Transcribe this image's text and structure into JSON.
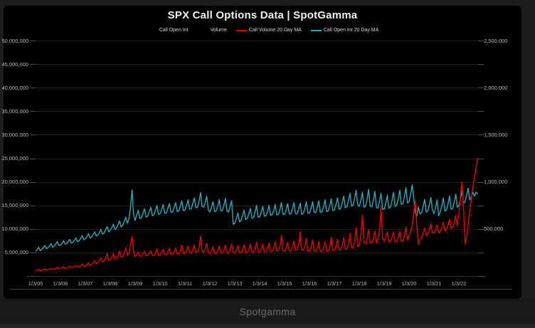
{
  "chart": {
    "title": "SPX Call Options Data | SpotGamma",
    "legend": [
      {
        "label": "Call Open Int",
        "marker_color": null
      },
      {
        "label": "Volume",
        "marker_color": null
      },
      {
        "label": "Call Volume 20 Day MA",
        "marker_color": "#e60000"
      },
      {
        "label": "Call Open Int 20 Day MA",
        "marker_color": "#2da7bc"
      }
    ]
  },
  "footer": {
    "brand": "Spotgamma"
  },
  "colors": {
    "panel_bg": "#000000",
    "page_bg": "#1d1d1d",
    "red_series": "#e60000",
    "cyan_series": "#2da7bc",
    "gridline": "#1f1f1f",
    "tick_stub": "#525252",
    "axis_text": "#b9b9b9"
  },
  "chart_data": {
    "type": "line",
    "title": "SPX Call Options Data | SpotGamma",
    "xlabel": "",
    "ylabel_left": "",
    "ylabel_right": "",
    "grid": "horizontal-only",
    "legend_position": "top-center",
    "x_tick_labels": [
      "1/3/05",
      "1/3/06",
      "1/3/07",
      "1/3/08",
      "1/3/09",
      "1/3/10",
      "1/3/11",
      "1/3/12",
      "1/3/13",
      "1/3/14",
      "1/3/15",
      "1/3/16",
      "1/3/17",
      "1/3/18",
      "1/3/19",
      "1/3/20",
      "1/3/21",
      "1/3/22"
    ],
    "x_start_year": 2005,
    "x_step_years": 0.0625,
    "left_axis": {
      "min": 0,
      "max": 50000000,
      "tick_step": 5000000,
      "tick_labels": [
        "-",
        "5,000,000",
        "10,000,000",
        "15,000,000",
        "20,000,000",
        "25,000,000",
        "30,000,000",
        "35,000,000",
        "40,000,000",
        "45,000,000",
        "50,000,000"
      ]
    },
    "right_axis": {
      "min": 0,
      "max": 2500000,
      "label_step": 500000,
      "minor_tick_step": 250000,
      "tick_labels": [
        "-",
        "500,000",
        "1,000,000",
        "1,500,000",
        "2,000,000",
        "2,500,000"
      ]
    },
    "series": [
      {
        "name": "Call Open Int 20 Day MA",
        "axis": "left",
        "color": "#2da7bc",
        "value_unit": 1000000,
        "unit_note": "values in millions of contracts, sampled ~every 3 weeks (16/yr) from Jan 2005 to Sep 2022",
        "values": [
          5.2,
          5.6,
          6.1,
          5.4,
          5.7,
          6.0,
          6.5,
          5.8,
          6.0,
          6.4,
          6.9,
          6.1,
          6.4,
          6.8,
          7.3,
          6.5,
          6.6,
          7.0,
          7.5,
          6.8,
          6.9,
          7.3,
          7.8,
          7.0,
          7.2,
          7.6,
          8.1,
          7.3,
          7.5,
          8.0,
          8.6,
          7.7,
          7.9,
          8.4,
          9.0,
          8.1,
          8.3,
          8.8,
          9.4,
          8.5,
          8.7,
          9.2,
          9.9,
          8.9,
          9.2,
          9.8,
          10.5,
          9.4,
          9.7,
          10.3,
          11.0,
          9.9,
          10.2,
          10.9,
          11.7,
          10.4,
          10.8,
          11.6,
          12.5,
          11.2,
          12.2,
          14.5,
          18.3,
          13.0,
          11.8,
          13.0,
          14.0,
          12.2,
          12.4,
          13.3,
          14.3,
          12.5,
          12.7,
          13.6,
          14.6,
          12.8,
          13.0,
          13.9,
          15.0,
          13.1,
          13.2,
          14.1,
          15.2,
          13.3,
          13.4,
          14.3,
          15.4,
          13.5,
          13.6,
          14.5,
          15.6,
          13.7,
          13.8,
          14.8,
          16.0,
          13.9,
          14.0,
          15.0,
          16.2,
          14.2,
          14.3,
          15.4,
          16.6,
          14.5,
          14.6,
          15.8,
          17.7,
          14.8,
          14.6,
          15.6,
          17.0,
          14.0,
          13.6,
          14.6,
          15.8,
          13.7,
          13.8,
          14.8,
          16.2,
          13.9,
          13.9,
          15.0,
          16.5,
          13.8,
          13.6,
          14.8,
          16.0,
          11.0,
          11.2,
          12.2,
          13.4,
          11.5,
          11.8,
          12.8,
          14.0,
          12.0,
          12.2,
          13.2,
          14.4,
          12.3,
          12.4,
          13.5,
          15.0,
          12.5,
          12.6,
          13.5,
          14.8,
          12.7,
          12.8,
          13.7,
          15.0,
          12.9,
          13.0,
          13.9,
          15.2,
          13.0,
          13.1,
          14.1,
          15.6,
          13.1,
          13.1,
          14.0,
          15.4,
          13.2,
          13.2,
          14.2,
          15.6,
          13.3,
          13.2,
          14.1,
          15.5,
          13.1,
          13.3,
          14.3,
          15.8,
          13.3,
          13.4,
          14.3,
          15.8,
          13.5,
          13.5,
          14.5,
          16.0,
          13.6,
          13.6,
          14.6,
          16.2,
          13.7,
          13.8,
          14.9,
          16.4,
          13.9,
          14.0,
          15.1,
          16.6,
          14.2,
          14.3,
          15.5,
          17.0,
          14.5,
          14.7,
          15.9,
          17.6,
          14.9,
          15.0,
          16.4,
          18.2,
          15.1,
          14.8,
          16.0,
          17.8,
          14.6,
          14.8,
          16.2,
          18.4,
          14.9,
          14.7,
          16.0,
          18.0,
          14.6,
          14.4,
          15.8,
          17.6,
          14.2,
          14.2,
          15.4,
          17.2,
          14.4,
          14.6,
          15.9,
          17.8,
          14.8,
          15.0,
          16.3,
          18.2,
          15.2,
          15.4,
          16.8,
          18.8,
          15.5,
          15.8,
          17.4,
          19.4,
          16.4,
          13.4,
          12.8,
          14.6,
          13.2,
          13.4,
          14.7,
          16.3,
          13.6,
          13.8,
          15.0,
          16.7,
          14.0,
          13.3,
          14.5,
          16.2,
          12.8,
          13.6,
          14.9,
          16.6,
          13.8,
          14.0,
          15.3,
          17.0,
          14.2,
          14.4,
          15.7,
          17.4,
          14.6,
          15.0,
          16.4,
          18.0,
          15.4,
          15.8,
          17.2,
          18.7,
          16.2,
          16.8,
          17.8,
          17.0,
          17.8,
          17.5
        ]
      },
      {
        "name": "Call Volume 20 Day MA",
        "axis": "right",
        "color": "#e60000",
        "value_unit": 1000,
        "unit_note": "values in thousands of contracts, sampled ~every 3 weeks (16/yr) from Jan 2005 to Sep 2022",
        "values": [
          55,
          62,
          70,
          58,
          62,
          68,
          76,
          64,
          68,
          74,
          82,
          70,
          74,
          82,
          95,
          78,
          80,
          88,
          98,
          84,
          86,
          94,
          105,
          90,
          92,
          100,
          112,
          96,
          98,
          108,
          125,
          102,
          108,
          120,
          140,
          115,
          125,
          140,
          165,
          130,
          145,
          165,
          195,
          150,
          160,
          185,
          245,
          170,
          175,
          200,
          240,
          185,
          190,
          220,
          265,
          200,
          210,
          245,
          300,
          220,
          240,
          330,
          420,
          260,
          205,
          225,
          255,
          210,
          210,
          232,
          262,
          215,
          215,
          238,
          268,
          220,
          220,
          245,
          290,
          225,
          222,
          245,
          285,
          228,
          228,
          252,
          295,
          232,
          230,
          255,
          300,
          235,
          238,
          265,
          330,
          242,
          242,
          268,
          315,
          248,
          248,
          278,
          330,
          252,
          255,
          300,
          425,
          260,
          252,
          285,
          350,
          248,
          238,
          262,
          310,
          242,
          242,
          268,
          318,
          246,
          244,
          272,
          325,
          248,
          248,
          278,
          340,
          250,
          244,
          270,
          322,
          248,
          248,
          276,
          330,
          252,
          252,
          282,
          340,
          256,
          256,
          288,
          360,
          260,
          254,
          284,
          340,
          258,
          258,
          290,
          350,
          262,
          262,
          296,
          365,
          266,
          270,
          310,
          430,
          272,
          264,
          296,
          360,
          268,
          268,
          302,
          372,
          272,
          278,
          325,
          470,
          280,
          272,
          310,
          400,
          268,
          264,
          295,
          385,
          266,
          264,
          292,
          370,
          262,
          262,
          290,
          365,
          264,
          268,
          300,
          415,
          270,
          274,
          308,
          390,
          278,
          280,
          318,
          410,
          284,
          290,
          335,
          455,
          296,
          305,
          360,
          515,
          310,
          330,
          430,
          650,
          360,
          350,
          400,
          490,
          355,
          350,
          395,
          480,
          352,
          380,
          480,
          740,
          400,
          370,
          410,
          470,
          365,
          368,
          408,
          465,
          362,
          365,
          410,
          472,
          368,
          375,
          425,
          520,
          380,
          430,
          470,
          540,
          680,
          800,
          520,
          340,
          390,
          410,
          450,
          510,
          430,
          445,
          485,
          555,
          460,
          455,
          490,
          545,
          460,
          470,
          510,
          570,
          480,
          495,
          540,
          605,
          505,
          520,
          565,
          640,
          530,
          665,
          850,
          1000,
          700,
          340,
          420,
          560,
          700,
          820,
          950,
          1050,
          1150,
          1250
        ]
      }
    ]
  }
}
